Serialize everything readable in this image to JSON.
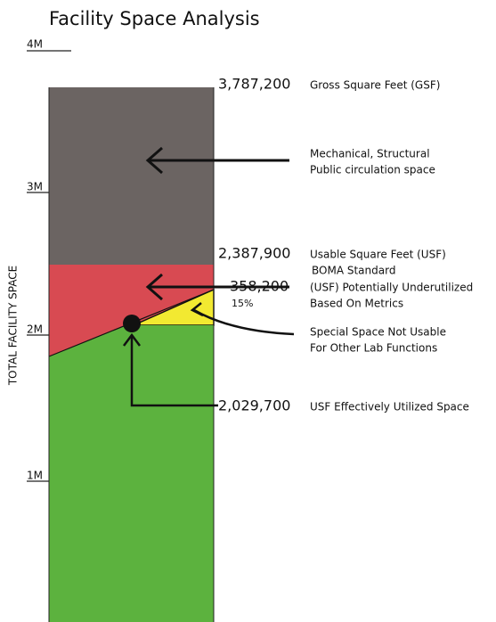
{
  "title": "Facility Space Analysis",
  "axis": {
    "label": "TOTAL FACILITY SPACE",
    "ticks": [
      "4M",
      "3M",
      "2M",
      "1M"
    ]
  },
  "gross": {
    "value": "3,787,200",
    "label": "Gross Square Feet (GSF)"
  },
  "mechanical": {
    "lines": [
      "Mechanical, Structural",
      "Public circulation space"
    ]
  },
  "usable": {
    "value": "2,387,900",
    "label": "Usable Square Feet (USF)",
    "sublabel": "BOMA Standard"
  },
  "underutilized": {
    "value": "358,200",
    "percent": "15%",
    "lines": [
      "(USF) Potentially Underutilized",
      "Based On Metrics"
    ]
  },
  "special": {
    "lines": [
      "Special Space Not Usable",
      "For Other Lab Functions"
    ]
  },
  "effective": {
    "value": "2,029,700",
    "label": "USF Effectively Utilized Space"
  }
}
